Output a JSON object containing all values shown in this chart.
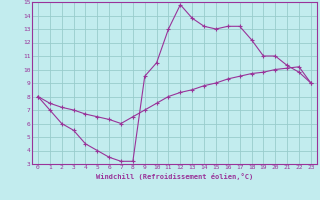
{
  "xlabel": "Windchill (Refroidissement éolien,°C)",
  "xlim": [
    -0.5,
    23.5
  ],
  "ylim": [
    3,
    15
  ],
  "xticks": [
    0,
    1,
    2,
    3,
    4,
    5,
    6,
    7,
    8,
    9,
    10,
    11,
    12,
    13,
    14,
    15,
    16,
    17,
    18,
    19,
    20,
    21,
    22,
    23
  ],
  "yticks": [
    3,
    4,
    5,
    6,
    7,
    8,
    9,
    10,
    11,
    12,
    13,
    14,
    15
  ],
  "bg_color": "#c2ecee",
  "line_color": "#993399",
  "grid_color": "#99cccc",
  "line1_x": [
    0,
    1,
    2,
    3,
    4,
    5,
    6,
    7,
    8,
    9,
    10,
    11,
    12,
    13,
    14,
    15,
    16,
    17,
    18,
    19,
    20,
    21,
    22,
    23
  ],
  "line1_y": [
    8.0,
    7.0,
    6.0,
    5.5,
    4.5,
    4.0,
    3.5,
    3.2,
    3.2,
    9.5,
    10.5,
    13.0,
    14.8,
    13.8,
    13.2,
    13.0,
    13.2,
    13.2,
    12.2,
    11.0,
    11.0,
    10.3,
    9.8,
    9.0
  ],
  "line2_x": [
    0,
    1,
    2,
    3,
    4,
    5,
    6,
    7,
    8,
    9,
    10,
    11,
    12,
    13,
    14,
    15,
    16,
    17,
    18,
    19,
    20,
    21,
    22,
    23
  ],
  "line2_y": [
    8.0,
    7.5,
    7.2,
    7.0,
    6.7,
    6.5,
    6.3,
    6.0,
    6.5,
    7.0,
    7.5,
    8.0,
    8.3,
    8.5,
    8.8,
    9.0,
    9.3,
    9.5,
    9.7,
    9.8,
    10.0,
    10.1,
    10.2,
    9.0
  ]
}
